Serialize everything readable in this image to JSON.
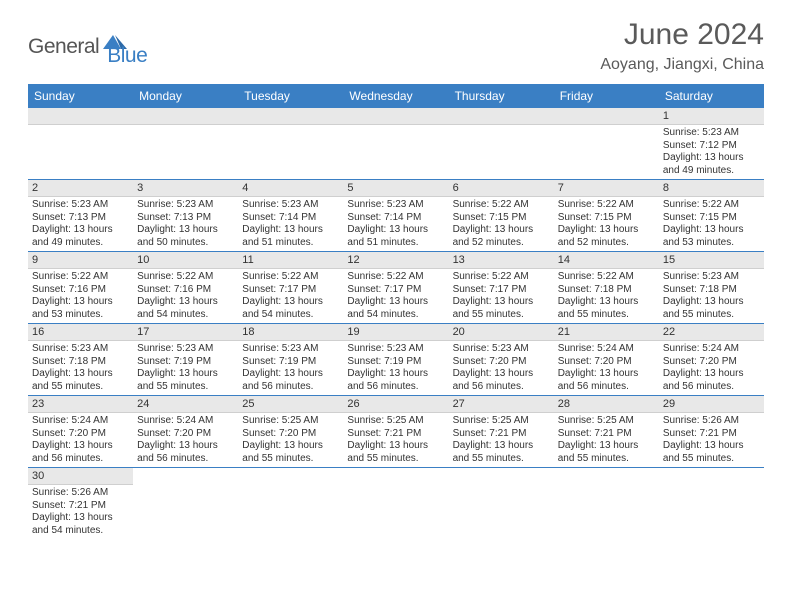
{
  "logo": {
    "general": "General",
    "blue": "Blue"
  },
  "title": "June 2024",
  "location": "Aoyang, Jiangxi, China",
  "colors": {
    "header_bg": "#3a7fc4",
    "header_fg": "#ffffff",
    "daynum_bg": "#e8e8e8",
    "cell_border": "#3a7fc4",
    "text": "#333333",
    "title_color": "#5a5a5a"
  },
  "weekdays": [
    "Sunday",
    "Monday",
    "Tuesday",
    "Wednesday",
    "Thursday",
    "Friday",
    "Saturday"
  ],
  "weeks": [
    [
      {
        "empty": true
      },
      {
        "empty": true
      },
      {
        "empty": true
      },
      {
        "empty": true
      },
      {
        "empty": true
      },
      {
        "empty": true
      },
      {
        "day": "1",
        "sunrise": "Sunrise: 5:23 AM",
        "sunset": "Sunset: 7:12 PM",
        "daylight1": "Daylight: 13 hours",
        "daylight2": "and 49 minutes."
      }
    ],
    [
      {
        "day": "2",
        "sunrise": "Sunrise: 5:23 AM",
        "sunset": "Sunset: 7:13 PM",
        "daylight1": "Daylight: 13 hours",
        "daylight2": "and 49 minutes."
      },
      {
        "day": "3",
        "sunrise": "Sunrise: 5:23 AM",
        "sunset": "Sunset: 7:13 PM",
        "daylight1": "Daylight: 13 hours",
        "daylight2": "and 50 minutes."
      },
      {
        "day": "4",
        "sunrise": "Sunrise: 5:23 AM",
        "sunset": "Sunset: 7:14 PM",
        "daylight1": "Daylight: 13 hours",
        "daylight2": "and 51 minutes."
      },
      {
        "day": "5",
        "sunrise": "Sunrise: 5:23 AM",
        "sunset": "Sunset: 7:14 PM",
        "daylight1": "Daylight: 13 hours",
        "daylight2": "and 51 minutes."
      },
      {
        "day": "6",
        "sunrise": "Sunrise: 5:22 AM",
        "sunset": "Sunset: 7:15 PM",
        "daylight1": "Daylight: 13 hours",
        "daylight2": "and 52 minutes."
      },
      {
        "day": "7",
        "sunrise": "Sunrise: 5:22 AM",
        "sunset": "Sunset: 7:15 PM",
        "daylight1": "Daylight: 13 hours",
        "daylight2": "and 52 minutes."
      },
      {
        "day": "8",
        "sunrise": "Sunrise: 5:22 AM",
        "sunset": "Sunset: 7:15 PM",
        "daylight1": "Daylight: 13 hours",
        "daylight2": "and 53 minutes."
      }
    ],
    [
      {
        "day": "9",
        "sunrise": "Sunrise: 5:22 AM",
        "sunset": "Sunset: 7:16 PM",
        "daylight1": "Daylight: 13 hours",
        "daylight2": "and 53 minutes."
      },
      {
        "day": "10",
        "sunrise": "Sunrise: 5:22 AM",
        "sunset": "Sunset: 7:16 PM",
        "daylight1": "Daylight: 13 hours",
        "daylight2": "and 54 minutes."
      },
      {
        "day": "11",
        "sunrise": "Sunrise: 5:22 AM",
        "sunset": "Sunset: 7:17 PM",
        "daylight1": "Daylight: 13 hours",
        "daylight2": "and 54 minutes."
      },
      {
        "day": "12",
        "sunrise": "Sunrise: 5:22 AM",
        "sunset": "Sunset: 7:17 PM",
        "daylight1": "Daylight: 13 hours",
        "daylight2": "and 54 minutes."
      },
      {
        "day": "13",
        "sunrise": "Sunrise: 5:22 AM",
        "sunset": "Sunset: 7:17 PM",
        "daylight1": "Daylight: 13 hours",
        "daylight2": "and 55 minutes."
      },
      {
        "day": "14",
        "sunrise": "Sunrise: 5:22 AM",
        "sunset": "Sunset: 7:18 PM",
        "daylight1": "Daylight: 13 hours",
        "daylight2": "and 55 minutes."
      },
      {
        "day": "15",
        "sunrise": "Sunrise: 5:23 AM",
        "sunset": "Sunset: 7:18 PM",
        "daylight1": "Daylight: 13 hours",
        "daylight2": "and 55 minutes."
      }
    ],
    [
      {
        "day": "16",
        "sunrise": "Sunrise: 5:23 AM",
        "sunset": "Sunset: 7:18 PM",
        "daylight1": "Daylight: 13 hours",
        "daylight2": "and 55 minutes."
      },
      {
        "day": "17",
        "sunrise": "Sunrise: 5:23 AM",
        "sunset": "Sunset: 7:19 PM",
        "daylight1": "Daylight: 13 hours",
        "daylight2": "and 55 minutes."
      },
      {
        "day": "18",
        "sunrise": "Sunrise: 5:23 AM",
        "sunset": "Sunset: 7:19 PM",
        "daylight1": "Daylight: 13 hours",
        "daylight2": "and 56 minutes."
      },
      {
        "day": "19",
        "sunrise": "Sunrise: 5:23 AM",
        "sunset": "Sunset: 7:19 PM",
        "daylight1": "Daylight: 13 hours",
        "daylight2": "and 56 minutes."
      },
      {
        "day": "20",
        "sunrise": "Sunrise: 5:23 AM",
        "sunset": "Sunset: 7:20 PM",
        "daylight1": "Daylight: 13 hours",
        "daylight2": "and 56 minutes."
      },
      {
        "day": "21",
        "sunrise": "Sunrise: 5:24 AM",
        "sunset": "Sunset: 7:20 PM",
        "daylight1": "Daylight: 13 hours",
        "daylight2": "and 56 minutes."
      },
      {
        "day": "22",
        "sunrise": "Sunrise: 5:24 AM",
        "sunset": "Sunset: 7:20 PM",
        "daylight1": "Daylight: 13 hours",
        "daylight2": "and 56 minutes."
      }
    ],
    [
      {
        "day": "23",
        "sunrise": "Sunrise: 5:24 AM",
        "sunset": "Sunset: 7:20 PM",
        "daylight1": "Daylight: 13 hours",
        "daylight2": "and 56 minutes."
      },
      {
        "day": "24",
        "sunrise": "Sunrise: 5:24 AM",
        "sunset": "Sunset: 7:20 PM",
        "daylight1": "Daylight: 13 hours",
        "daylight2": "and 56 minutes."
      },
      {
        "day": "25",
        "sunrise": "Sunrise: 5:25 AM",
        "sunset": "Sunset: 7:20 PM",
        "daylight1": "Daylight: 13 hours",
        "daylight2": "and 55 minutes."
      },
      {
        "day": "26",
        "sunrise": "Sunrise: 5:25 AM",
        "sunset": "Sunset: 7:21 PM",
        "daylight1": "Daylight: 13 hours",
        "daylight2": "and 55 minutes."
      },
      {
        "day": "27",
        "sunrise": "Sunrise: 5:25 AM",
        "sunset": "Sunset: 7:21 PM",
        "daylight1": "Daylight: 13 hours",
        "daylight2": "and 55 minutes."
      },
      {
        "day": "28",
        "sunrise": "Sunrise: 5:25 AM",
        "sunset": "Sunset: 7:21 PM",
        "daylight1": "Daylight: 13 hours",
        "daylight2": "and 55 minutes."
      },
      {
        "day": "29",
        "sunrise": "Sunrise: 5:26 AM",
        "sunset": "Sunset: 7:21 PM",
        "daylight1": "Daylight: 13 hours",
        "daylight2": "and 55 minutes."
      }
    ],
    [
      {
        "day": "30",
        "sunrise": "Sunrise: 5:26 AM",
        "sunset": "Sunset: 7:21 PM",
        "daylight1": "Daylight: 13 hours",
        "daylight2": "and 54 minutes."
      },
      {
        "empty": true
      },
      {
        "empty": true
      },
      {
        "empty": true
      },
      {
        "empty": true
      },
      {
        "empty": true
      },
      {
        "empty": true
      }
    ]
  ]
}
